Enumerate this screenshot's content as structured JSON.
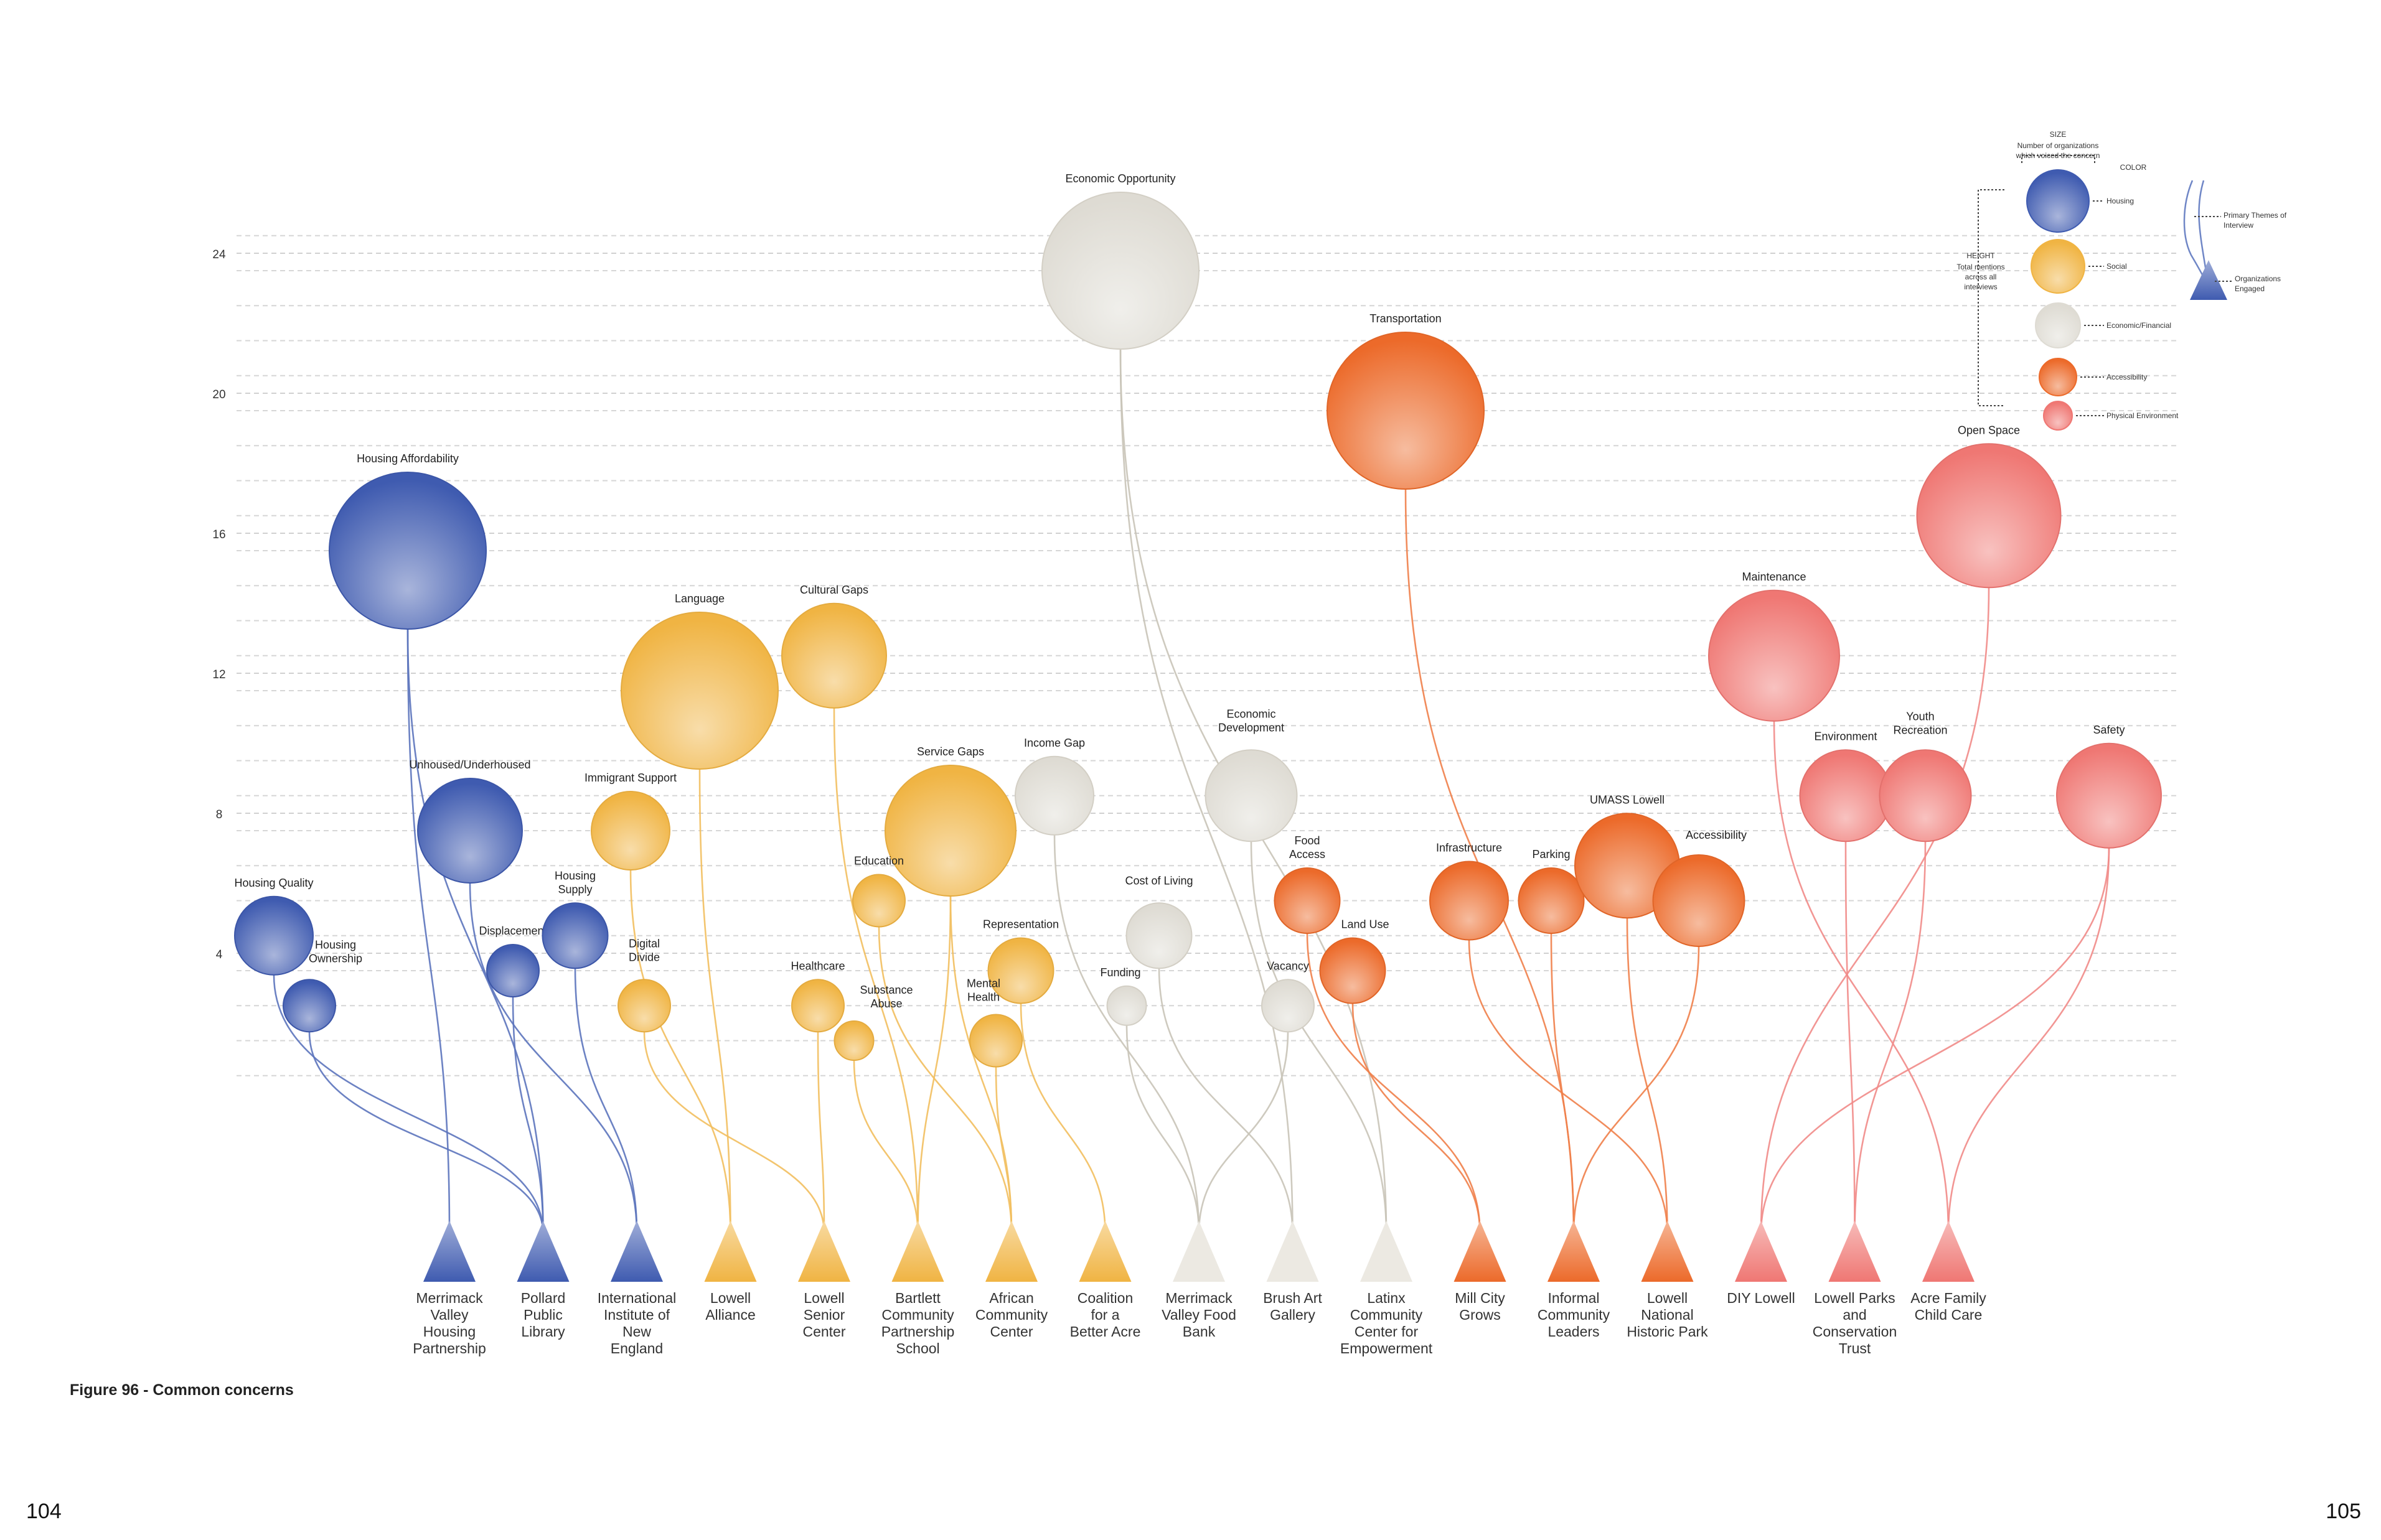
{
  "page": {
    "left_number": "104",
    "right_number": "105",
    "caption": "Figure 96 - Common concerns"
  },
  "colors": {
    "Housing": "#3f5bb0",
    "Social": "#f0b443",
    "Economic/Financial": "#dedbd3",
    "Accessibility": "#ec6a2a",
    "Physical Environment": "#ef7773"
  },
  "legend": {
    "size_title": "SIZE",
    "size_desc_1": "Number of organizations",
    "size_desc_2": "which voiced the concern",
    "color_title": "COLOR",
    "height_title": "HEIGHT",
    "height_desc": [
      "Total mentions",
      "across all",
      "interviews"
    ],
    "categories": [
      "Housing",
      "Social",
      "Economic/Financial",
      "Accessibility",
      "Physical Environment"
    ],
    "line_label": [
      "Primary Themes of",
      "Interview"
    ],
    "triangle_label": [
      "Organizations",
      "Engaged"
    ]
  },
  "chart_data": {
    "type": "scatter",
    "title": "",
    "xlabel": "",
    "ylabel": "",
    "ylim": [
      0,
      25
    ],
    "yticks": [
      4,
      8,
      12,
      16,
      20,
      24
    ],
    "organizations": [
      {
        "name": "Merrimack Valley Housing Partnership",
        "lines": [
          "Merrimack",
          "Valley",
          "Housing",
          "Partnership"
        ],
        "category": "Housing"
      },
      {
        "name": "Pollard Public Library",
        "lines": [
          "Pollard",
          "Public",
          "Library"
        ],
        "category": "Housing"
      },
      {
        "name": "International Institute of New England",
        "lines": [
          "International",
          "Institute of",
          "New",
          "England"
        ],
        "category": "Housing"
      },
      {
        "name": "Lowell Alliance",
        "lines": [
          "Lowell",
          "Alliance"
        ],
        "category": "Social"
      },
      {
        "name": "Lowell Senior Center",
        "lines": [
          "Lowell",
          "Senior",
          "Center"
        ],
        "category": "Social"
      },
      {
        "name": "Bartlett Community Partnership School",
        "lines": [
          "Bartlett",
          "Community",
          "Partnership",
          "School"
        ],
        "category": "Social"
      },
      {
        "name": "African Community Center",
        "lines": [
          "African",
          "Community",
          "Center"
        ],
        "category": "Social"
      },
      {
        "name": "Coalition for a Better Acre",
        "lines": [
          "Coalition",
          "for a",
          "Better Acre"
        ],
        "category": "Social"
      },
      {
        "name": "Merrimack Valley Food Bank",
        "lines": [
          "Merrimack",
          "Valley Food",
          "Bank"
        ],
        "category": "Economic/Financial"
      },
      {
        "name": "Brush Art Gallery",
        "lines": [
          "Brush Art",
          "Gallery"
        ],
        "category": "Economic/Financial"
      },
      {
        "name": "Latinx Community Center for Empowerment",
        "lines": [
          "Latinx",
          "Community",
          "Center for",
          "Empowerment"
        ],
        "category": "Economic/Financial"
      },
      {
        "name": "Mill City Grows",
        "lines": [
          "Mill City",
          "Grows"
        ],
        "category": "Accessibility"
      },
      {
        "name": "Informal Community Leaders",
        "lines": [
          "Informal",
          "Community",
          "Leaders"
        ],
        "category": "Accessibility"
      },
      {
        "name": "Lowell National Historic Park",
        "lines": [
          "Lowell",
          "National",
          "Historic Park"
        ],
        "category": "Accessibility"
      },
      {
        "name": "DIY Lowell",
        "lines": [
          "DIY Lowell"
        ],
        "category": "Physical Environment"
      },
      {
        "name": "Lowell Parks and Conservation Trust",
        "lines": [
          "Lowell Parks",
          "and",
          "Conservation",
          "Trust"
        ],
        "category": "Physical Environment"
      },
      {
        "name": "Acre Family Child Care",
        "lines": [
          "Acre Family",
          "Child Care"
        ],
        "category": "Physical Environment"
      }
    ],
    "concerns": [
      {
        "label": "Housing Affordability",
        "category": "Housing",
        "mentions": 16,
        "orgs": 6,
        "links": [
          0,
          1
        ]
      },
      {
        "label": "Unhoused/Underhoused",
        "category": "Housing",
        "mentions": 8,
        "orgs": 4,
        "links": [
          2
        ]
      },
      {
        "label": "Housing Quality",
        "category": "Housing",
        "mentions": 5,
        "orgs": 3,
        "links": [
          1
        ]
      },
      {
        "label": "Housing Ownership",
        "category": "Housing",
        "mentions": 3,
        "orgs": 2,
        "links": [
          1
        ]
      },
      {
        "label": "Displacement",
        "category": "Housing",
        "mentions": 4,
        "orgs": 2,
        "links": [
          1
        ]
      },
      {
        "label": "Housing  Supply",
        "category": "Housing",
        "mentions": 5,
        "orgs": 2.5,
        "links": [
          2
        ]
      },
      {
        "label": "Language",
        "category": "Social",
        "mentions": 12,
        "orgs": 6,
        "links": [
          3
        ]
      },
      {
        "label": "Cultural Gaps",
        "category": "Social",
        "mentions": 13,
        "orgs": 4,
        "links": [
          5
        ]
      },
      {
        "label": "Immigrant Support",
        "category": "Social",
        "mentions": 8,
        "orgs": 3,
        "links": [
          3
        ]
      },
      {
        "label": "Digital Divide",
        "category": "Social",
        "mentions": 3,
        "orgs": 2,
        "links": [
          4
        ]
      },
      {
        "label": "Service Gaps",
        "category": "Social",
        "mentions": 8,
        "orgs": 5,
        "links": [
          6,
          5
        ]
      },
      {
        "label": "Education",
        "category": "Social",
        "mentions": 6,
        "orgs": 2,
        "links": [
          6
        ]
      },
      {
        "label": "Healthcare",
        "category": "Social",
        "mentions": 3,
        "orgs": 2,
        "links": [
          4
        ]
      },
      {
        "label": "Substance Abuse",
        "category": "Social",
        "mentions": 2,
        "orgs": 1.5,
        "links": [
          5
        ]
      },
      {
        "label": "Representation",
        "category": "Social",
        "mentions": 4,
        "orgs": 2.5,
        "links": [
          7
        ]
      },
      {
        "label": "Mental Health",
        "category": "Social",
        "mentions": 2,
        "orgs": 2,
        "links": [
          6
        ]
      },
      {
        "label": "Economic Opportunity",
        "category": "Economic/Financial",
        "mentions": 24,
        "orgs": 6,
        "links": [
          9,
          10
        ]
      },
      {
        "label": "Income Gap",
        "category": "Economic/Financial",
        "mentions": 9,
        "orgs": 3,
        "links": [
          8
        ]
      },
      {
        "label": "Economic Development",
        "category": "Economic/Financial",
        "mentions": 9,
        "orgs": 3.5,
        "links": [
          10
        ]
      },
      {
        "label": "Cost of Living",
        "category": "Economic/Financial",
        "mentions": 5,
        "orgs": 2.5,
        "links": [
          9
        ]
      },
      {
        "label": "Funding",
        "category": "Economic/Financial",
        "mentions": 3,
        "orgs": 1.5,
        "links": [
          8
        ]
      },
      {
        "label": "Vacancy",
        "category": "Economic/Financial",
        "mentions": 3,
        "orgs": 2,
        "links": [
          8
        ]
      },
      {
        "label": "Transportation",
        "category": "Accessibility",
        "mentions": 20,
        "orgs": 6,
        "links": [
          12
        ]
      },
      {
        "label": "Food Access",
        "category": "Accessibility",
        "mentions": 6,
        "orgs": 2.5,
        "links": [
          11
        ]
      },
      {
        "label": "Land Use",
        "category": "Accessibility",
        "mentions": 4,
        "orgs": 2.5,
        "links": [
          11
        ]
      },
      {
        "label": "Infrastructure",
        "category": "Accessibility",
        "mentions": 6,
        "orgs": 3,
        "links": [
          13
        ]
      },
      {
        "label": "Parking",
        "category": "Accessibility",
        "mentions": 6,
        "orgs": 2.5,
        "links": [
          12
        ]
      },
      {
        "label": "UMASS Lowell",
        "category": "Accessibility",
        "mentions": 7,
        "orgs": 4,
        "links": [
          13
        ]
      },
      {
        "label": "Accessibility",
        "category": "Accessibility",
        "mentions": 6,
        "orgs": 3.5,
        "links": [
          12
        ]
      },
      {
        "label": "Open Space",
        "category": "Physical Environment",
        "mentions": 17,
        "orgs": 5.5,
        "links": [
          14
        ]
      },
      {
        "label": "Maintenance",
        "category": "Physical Environment",
        "mentions": 13,
        "orgs": 5,
        "links": [
          16
        ]
      },
      {
        "label": "Environment",
        "category": "Physical Environment",
        "mentions": 9,
        "orgs": 3.5,
        "links": [
          15
        ]
      },
      {
        "label": "Youth Recreation",
        "category": "Physical Environment",
        "mentions": 9,
        "orgs": 3.5,
        "links": [
          15
        ]
      },
      {
        "label": "Safety",
        "category": "Physical Environment",
        "mentions": 9,
        "orgs": 4,
        "links": [
          14,
          16
        ]
      }
    ]
  }
}
